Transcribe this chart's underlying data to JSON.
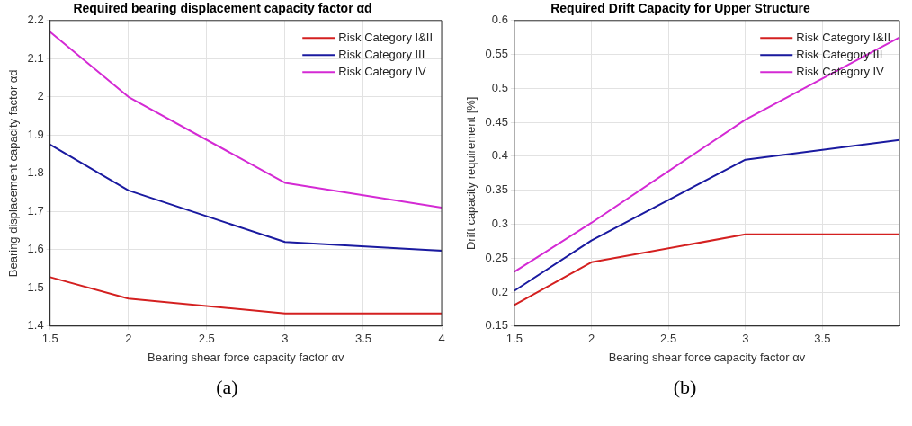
{
  "chart_data": [
    {
      "type": "line",
      "title": "Required bearing displacement capacity factor αd",
      "xlabel": "Bearing shear force capacity factor αv",
      "ylabel": "Bearing displacement capacity factor αd",
      "x": [
        1.5,
        2,
        3,
        4
      ],
      "series": [
        {
          "name": "Risk Category I&II",
          "color": "#d42020",
          "values": [
            1.528,
            1.472,
            1.433,
            1.433
          ]
        },
        {
          "name": "Risk Category III",
          "color": "#1a1aa0",
          "values": [
            1.875,
            1.755,
            1.62,
            1.597
          ]
        },
        {
          "name": "Risk Category IV",
          "color": "#d42ad4",
          "values": [
            2.17,
            2.0,
            1.775,
            1.71
          ]
        }
      ],
      "xlim": [
        1.5,
        4
      ],
      "xticks": [
        1.5,
        2,
        2.5,
        3,
        3.5,
        4
      ],
      "ylim": [
        1.4,
        2.2
      ],
      "yticks": [
        1.4,
        1.5,
        1.6,
        1.7,
        1.8,
        1.9,
        2,
        2.1,
        2.2
      ],
      "grid": true,
      "legend": "top right",
      "marker": "none",
      "line_style": "solid",
      "annotations": [
        "(a)"
      ]
    },
    {
      "type": "line",
      "title": "Required Drift Capacity for Upper Structure",
      "xlabel": "Bearing shear force capacity factor αv",
      "ylabel": "Drift capacity requirement [%]",
      "x": [
        1.5,
        2,
        3,
        4
      ],
      "series": [
        {
          "name": "Risk Category I&II",
          "color": "#d42020",
          "values": [
            0.181,
            0.244,
            0.285,
            0.285
          ]
        },
        {
          "name": "Risk Category III",
          "color": "#1a1aa0",
          "values": [
            0.202,
            0.276,
            0.395,
            0.424
          ]
        },
        {
          "name": "Risk Category IV",
          "color": "#d42ad4",
          "values": [
            0.23,
            0.302,
            0.454,
            0.575
          ]
        }
      ],
      "xlim": [
        1.5,
        4
      ],
      "xticks": [
        1.5,
        2,
        2.5,
        3,
        3.5
      ],
      "ylim": [
        0.15,
        0.6
      ],
      "yticks": [
        0.15,
        0.2,
        0.25,
        0.3,
        0.35,
        0.4,
        0.45,
        0.5,
        0.55,
        0.6
      ],
      "grid": true,
      "legend": "top right",
      "marker": "none",
      "line_style": "solid",
      "annotations": [
        "(b)"
      ]
    }
  ]
}
